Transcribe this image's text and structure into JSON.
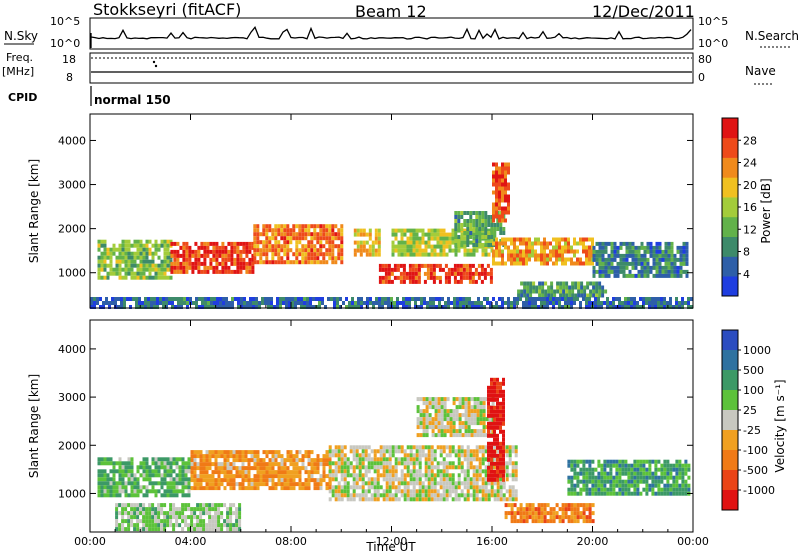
{
  "header": {
    "site": "Stokkseyri (fitACF)",
    "beam": "Beam 12",
    "date": "12/Dec/2011"
  },
  "top_panels": {
    "nsky_label": "N.Sky",
    "nsearch_label": "N.Search",
    "noise_ticks": [
      "10^5",
      "10^0"
    ],
    "freq_label": "Freq.",
    "freq_unit": "[MHz]",
    "freq_ticks": [
      "18",
      "8"
    ],
    "nave_label": "Nave",
    "nave_ticks": [
      "80",
      "0"
    ],
    "cpid_label": "CPID",
    "cpid_value": "normal 150"
  },
  "colors": {
    "power_scale": [
      "#1f3ee0",
      "#2e5fa8",
      "#3d8a6a",
      "#62b24a",
      "#a3cc3a",
      "#f0c020",
      "#f08a1c",
      "#ee4a1a",
      "#e01414"
    ],
    "velocity_scale": [
      "#2b4cc0",
      "#2f72a0",
      "#3c9966",
      "#5cc23a",
      "#c8c8c0",
      "#f0a020",
      "#f07a16",
      "#ea4416",
      "#e01212"
    ]
  },
  "chart_data": [
    {
      "type": "heatmap",
      "title": "Power",
      "xlabel": "",
      "ylabel": "Slant Range [km]",
      "x_ticks": [
        "00:00",
        "04:00",
        "08:00",
        "12:00",
        "16:00",
        "20:00",
        "00:00"
      ],
      "y_ticks": [
        "1000",
        "2000",
        "3000",
        "4000"
      ],
      "ylim": [
        200,
        4600
      ],
      "colorbar": {
        "label": "Power [dB]",
        "ticks": [
          "4",
          "8",
          "12",
          "16",
          "20",
          "24",
          "28"
        ],
        "range": [
          0,
          32
        ]
      },
      "regions": [
        {
          "t0": 0.3,
          "t1": 3.2,
          "r0": 900,
          "r1": 1750,
          "value": 14
        },
        {
          "t0": 3.2,
          "t1": 6.5,
          "r0": 1000,
          "r1": 1700,
          "value": 28
        },
        {
          "t0": 6.5,
          "t1": 10.0,
          "r0": 1200,
          "r1": 2100,
          "value": 24
        },
        {
          "t0": 10.5,
          "t1": 11.5,
          "r0": 1400,
          "r1": 2000,
          "value": 20
        },
        {
          "t0": 11.5,
          "t1": 16.0,
          "r0": 800,
          "r1": 1200,
          "value": 28
        },
        {
          "t0": 12.0,
          "t1": 16.0,
          "r0": 1400,
          "r1": 2000,
          "value": 16
        },
        {
          "t0": 14.5,
          "t1": 16.5,
          "r0": 1600,
          "r1": 2400,
          "value": 12
        },
        {
          "t0": 16.0,
          "t1": 20.0,
          "r0": 1200,
          "r1": 1800,
          "value": 22
        },
        {
          "t0": 17.0,
          "t1": 20.5,
          "r0": 500,
          "r1": 800,
          "value": 10
        },
        {
          "t0": 20.0,
          "t1": 23.8,
          "r0": 900,
          "r1": 1700,
          "value": 8
        },
        {
          "t0": 0.0,
          "t1": 24.0,
          "r0": 250,
          "r1": 450,
          "value": 6
        },
        {
          "t0": 16.0,
          "t1": 16.6,
          "r0": 2200,
          "r1": 3500,
          "value": 26
        }
      ]
    },
    {
      "type": "heatmap",
      "title": "Velocity",
      "xlabel": "Time UT",
      "ylabel": "Slant Range [km]",
      "x_ticks": [
        "00:00",
        "04:00",
        "08:00",
        "12:00",
        "16:00",
        "20:00",
        "00:00"
      ],
      "y_ticks": [
        "1000",
        "2000",
        "3000",
        "4000"
      ],
      "ylim": [
        200,
        4600
      ],
      "colorbar": {
        "label": "Velocity [m s⁻¹]",
        "ticks": [
          "1000",
          "500",
          "100",
          "25",
          "-25",
          "-100",
          "-500",
          "-1000"
        ],
        "range": [
          -1000,
          1000
        ]
      },
      "regions": [
        {
          "t0": 0.3,
          "t1": 4.0,
          "r0": 1000,
          "r1": 1750,
          "value": 300
        },
        {
          "t0": 4.0,
          "t1": 9.5,
          "r0": 1100,
          "r1": 1900,
          "value": -300
        },
        {
          "t0": 9.5,
          "t1": 17.0,
          "r0": 900,
          "r1": 2000,
          "value": 0
        },
        {
          "t0": 13.0,
          "t1": 16.0,
          "r0": 2200,
          "r1": 3000,
          "value": 0
        },
        {
          "t0": 15.8,
          "t1": 16.5,
          "r0": 1300,
          "r1": 3400,
          "value": -900
        },
        {
          "t0": 16.5,
          "t1": 20.0,
          "r0": 400,
          "r1": 800,
          "value": -400
        },
        {
          "t0": 19.0,
          "t1": 23.8,
          "r0": 1000,
          "r1": 1700,
          "value": 400
        },
        {
          "t0": 1.0,
          "t1": 6.0,
          "r0": 300,
          "r1": 800,
          "value": 150
        }
      ]
    }
  ]
}
